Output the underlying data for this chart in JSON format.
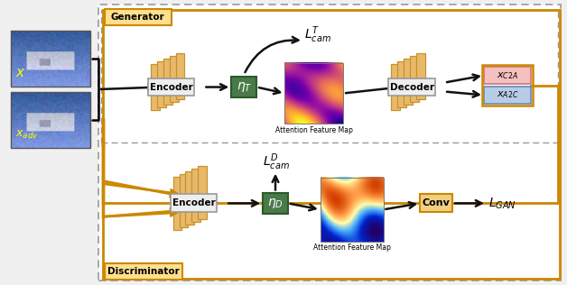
{
  "bg_color": "#f0f0f0",
  "gen_box_color": "#b8860b",
  "disc_box_color": "#cd8500",
  "slab_color": "#e8b96a",
  "slab_edge": "#c8922a",
  "eta_T_fill": "#4a7a4a",
  "eta_D_fill": "#4a7a4a",
  "conv_fill": "#f0d080",
  "conv_edge": "#cd8500",
  "x_C2A_fill": "#f5c0c0",
  "x_A2C_fill": "#b8cce8",
  "x_C2A_edge": "#cc7777",
  "x_A2C_edge": "#6688bb",
  "arrow_color": "#111111",
  "orange_color": "#cc8800",
  "gen_label": "Generator",
  "disc_label": "Discriminator",
  "encoder_label": "Encoder",
  "decoder_label": "Decoder",
  "conv_label": "Conv",
  "eta_T_label": "$\\eta_{T}$",
  "eta_D_label": "$\\eta_{D}$",
  "x_label": "$x$",
  "x_adv_label": "$x_{adv}$",
  "x_C2A_label": "$x_{C2A}$",
  "x_A2C_label": "$x_{A2C}$",
  "lcam_T_label": "$L^{T}_{cam}$",
  "lcam_D_label": "$L^{D}_{cam}$",
  "lgan_label": "$L_{GAN}$",
  "attn_label": "Attention Feature Map"
}
